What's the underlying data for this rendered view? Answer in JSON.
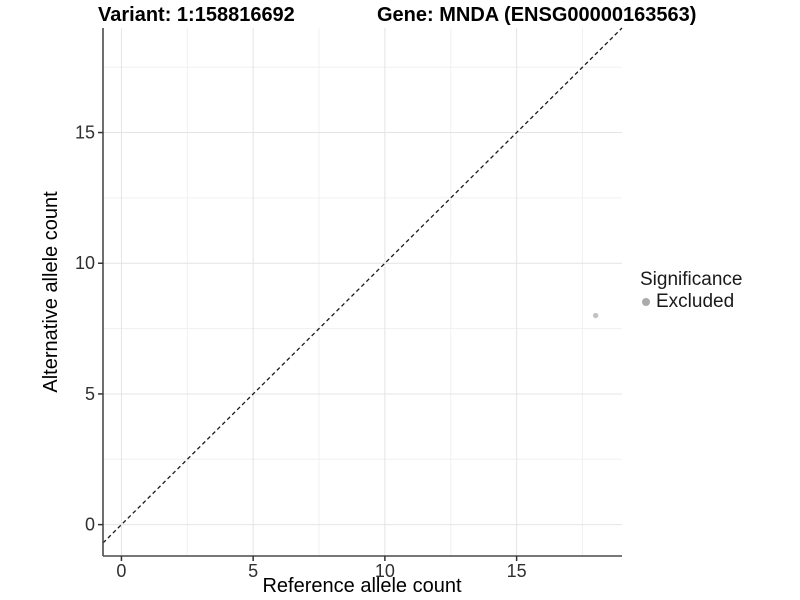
{
  "header": {
    "title_left": "Variant: 1:158816692",
    "title_right": "Gene: MNDA (ENSG00000163563)"
  },
  "chart_data": {
    "type": "scatter",
    "title": "Variant: 1:158816692   Gene: MNDA (ENSG00000163563)",
    "xlabel": "Reference allele count",
    "ylabel": "Alternative allele count",
    "xlim": [
      -0.7,
      19.0
    ],
    "ylim": [
      -1.2,
      19.0
    ],
    "xticks": [
      0,
      5,
      10,
      15
    ],
    "yticks": [
      0,
      5,
      10,
      15
    ],
    "x_minor": [
      2.5,
      7.5,
      12.5,
      17.5
    ],
    "y_minor": [
      2.5,
      7.5,
      12.5,
      17.5
    ],
    "grid": true,
    "series": [
      {
        "name": "Excluded",
        "color": "#c2c2c2",
        "points": [
          {
            "x": 18,
            "y": 8
          }
        ]
      }
    ],
    "reference_line": {
      "type": "identity",
      "slope": 1,
      "intercept": 0,
      "style": "dashed",
      "color": "#1a1a1a"
    },
    "legend": {
      "title": "Significance",
      "position": "right",
      "items": [
        {
          "label": "Excluded",
          "color": "#ababab"
        }
      ]
    }
  },
  "colors": {
    "background": "#ffffff",
    "grid_major": "#e4e4e4",
    "grid_minor": "#f0f0f0",
    "axis_line": "#4a4a4a",
    "tick_mark": "#333333",
    "tick_text": "#303030",
    "point": "#c2c2c2",
    "legend_dot": "#ababab"
  }
}
